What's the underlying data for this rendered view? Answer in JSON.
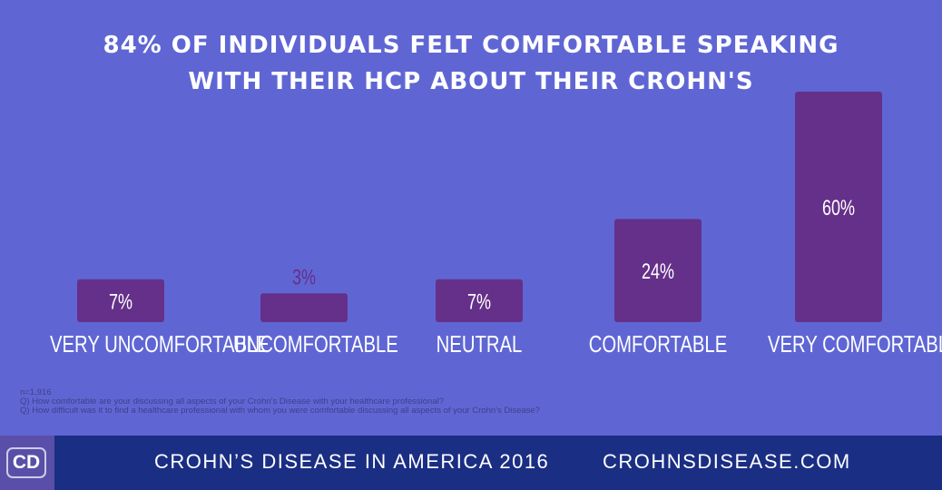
{
  "chart_data": {
    "type": "bar",
    "title": "84% of individuals felt comfortable speaking with their HCP about their Crohn's",
    "title_lines": [
      "84% OF INDIVIDUALS FELT COMFORTABLE SPEAKING",
      "WITH THEIR HCP ABOUT THEIR CROHN'S"
    ],
    "categories": [
      "VERY UNCOMFORTABLE",
      "UNCOMFORTABLE",
      "NEUTRAL",
      "COMFORTABLE",
      "VERY COMFORTABLE"
    ],
    "values": [
      7,
      3,
      7,
      24,
      60
    ],
    "data_labels": [
      "7%",
      "3%",
      "7%",
      "24%",
      "60%"
    ],
    "xlabel": "",
    "ylabel": "",
    "grid": false,
    "bar_color": "#65308a",
    "background": "#5f66d4"
  },
  "notes": {
    "n": "n=1,916",
    "q1": "Q) How comfortable are your discussing all aspects of your Crohn's Disease with your healthcare professional?",
    "q2": "Q) How difficult was it to find a healthcare professional with whom you were comfortable discussing all aspects of your Crohn's Disease?"
  },
  "footer": {
    "logo": "CD",
    "title": "CROHN’S DISEASE IN AMERICA 2016",
    "site": "CROHNSDISEASE.COM",
    "color": "#1a2e84"
  }
}
